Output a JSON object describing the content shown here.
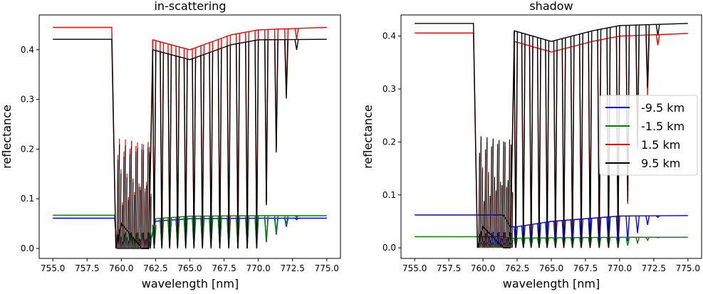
{
  "chart_data": [
    {
      "type": "line",
      "title": "in-scattering",
      "xlabel": "wavelength [nm]",
      "ylabel": "reflectance",
      "xlim": [
        754,
        776
      ],
      "ylim": [
        -0.02,
        0.47
      ],
      "xticks": [
        "755.0",
        "757.5",
        "760.0",
        "762.5",
        "765.0",
        "767.5",
        "770.0",
        "772.5",
        "775.0"
      ],
      "yticks": [
        "0.0",
        "0.1",
        "0.2",
        "0.3",
        "0.4"
      ],
      "grid": false,
      "series": [
        {
          "name": "-9.5 km",
          "color": "#0000ff",
          "continuum": 0.061,
          "x": [
            755,
            759.5,
            759.7,
            760.0,
            762.0,
            762.5,
            765.0,
            770.0,
            775.0
          ],
          "y": [
            0.061,
            0.061,
            0.0,
            0.0,
            0.0,
            0.055,
            0.06,
            0.061,
            0.061
          ]
        },
        {
          "name": "-1.5 km",
          "color": "#008000",
          "continuum": 0.067,
          "x": [
            755,
            759.5,
            759.7,
            760.0,
            762.0,
            762.5,
            765.0,
            770.0,
            775.0
          ],
          "y": [
            0.067,
            0.067,
            0.0,
            0.0,
            0.0,
            0.06,
            0.065,
            0.066,
            0.066
          ]
        },
        {
          "name": "1.5 km",
          "color": "#ff0000",
          "continuum": 0.445,
          "x": [
            755,
            759.3,
            759.6,
            760.0,
            761.5,
            762.0,
            762.3,
            765.0,
            768.0,
            770.0,
            775.0
          ],
          "y": [
            0.445,
            0.445,
            0.0,
            0.05,
            0.0,
            0.0,
            0.42,
            0.4,
            0.43,
            0.44,
            0.445
          ]
        },
        {
          "name": "9.5 km",
          "color": "#000000",
          "continuum": 0.421,
          "x": [
            755,
            759.3,
            759.6,
            760.0,
            761.5,
            762.0,
            762.3,
            765.0,
            768.0,
            770.0,
            775.0
          ],
          "y": [
            0.421,
            0.421,
            0.0,
            0.05,
            0.0,
            0.0,
            0.4,
            0.38,
            0.41,
            0.42,
            0.421
          ]
        }
      ]
    },
    {
      "type": "line",
      "title": "shadow",
      "xlabel": "wavelength [nm]",
      "ylabel": "reflectance",
      "xlim": [
        754,
        776
      ],
      "ylim": [
        -0.02,
        0.44
      ],
      "xticks": [
        "755.0",
        "757.5",
        "760.0",
        "762.5",
        "765.0",
        "767.5",
        "770.0",
        "772.5",
        "775.0"
      ],
      "yticks": [
        "0.0",
        "0.1",
        "0.2",
        "0.3",
        "0.4"
      ],
      "grid": false,
      "legend": "center-right",
      "series": [
        {
          "name": "-9.5 km",
          "color": "#0000ff",
          "continuum": 0.062,
          "x": [
            755,
            761.5,
            762.0,
            762.5,
            765.0,
            770.0,
            775.0
          ],
          "y": [
            0.062,
            0.062,
            0.04,
            0.04,
            0.05,
            0.06,
            0.061
          ]
        },
        {
          "name": "-1.5 km",
          "color": "#008000",
          "continuum": 0.021,
          "x": [
            755,
            761.5,
            762.0,
            765.0,
            770.0,
            775.0
          ],
          "y": [
            0.021,
            0.021,
            0.018,
            0.019,
            0.02,
            0.02
          ]
        },
        {
          "name": "1.5 km",
          "color": "#ff0000",
          "continuum": 0.406,
          "x": [
            755,
            759.3,
            759.6,
            760.0,
            761.5,
            762.0,
            762.3,
            765.0,
            768.0,
            770.0,
            775.0
          ],
          "y": [
            0.406,
            0.406,
            0.0,
            0.04,
            0.0,
            0.0,
            0.39,
            0.37,
            0.39,
            0.4,
            0.405
          ]
        },
        {
          "name": "9.5 km",
          "color": "#000000",
          "continuum": 0.424,
          "x": [
            755,
            759.3,
            759.6,
            760.0,
            761.5,
            762.0,
            762.3,
            765.0,
            768.0,
            770.0,
            775.0
          ],
          "y": [
            0.424,
            0.424,
            0.0,
            0.04,
            0.0,
            0.0,
            0.41,
            0.39,
            0.41,
            0.42,
            0.424
          ]
        }
      ]
    }
  ]
}
